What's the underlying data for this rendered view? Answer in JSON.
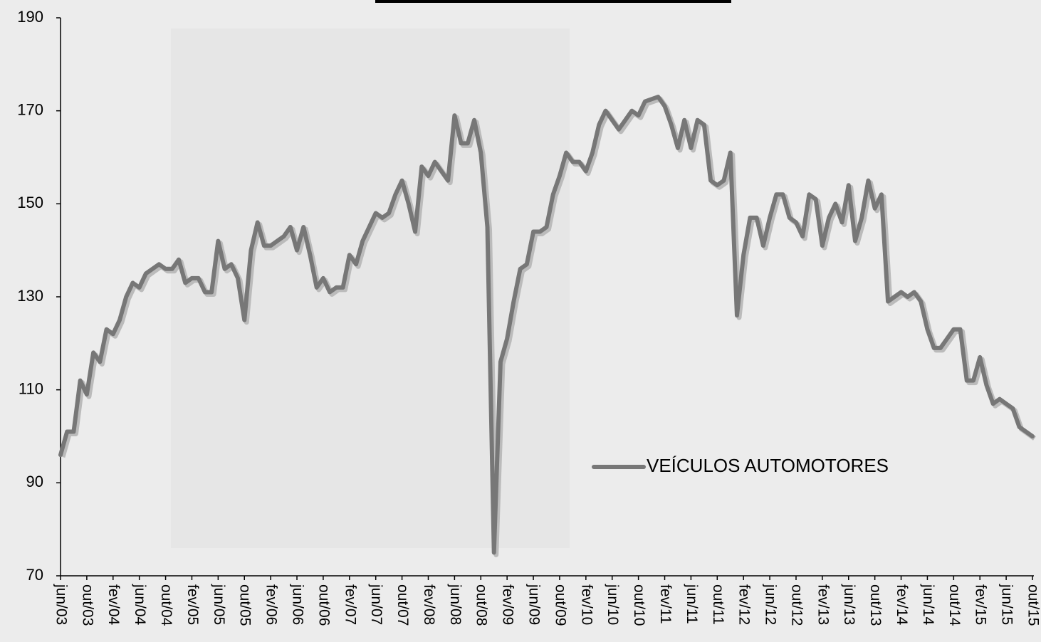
{
  "chart_data": {
    "type": "line",
    "categories": [
      "jun/03",
      null,
      null,
      null,
      "out/03",
      null,
      null,
      null,
      "fev/04",
      null,
      null,
      null,
      "jun/04",
      null,
      null,
      null,
      "out/04",
      null,
      null,
      null,
      "fev/05",
      null,
      null,
      null,
      "jun/05",
      null,
      null,
      null,
      "out/05",
      null,
      null,
      null,
      "fev/06",
      null,
      null,
      null,
      "jun/06",
      null,
      null,
      null,
      "out/06",
      null,
      null,
      null,
      "fev/07",
      null,
      null,
      null,
      "jun/07",
      null,
      null,
      null,
      "out/07",
      null,
      null,
      null,
      "fev/08",
      null,
      null,
      null,
      "jun/08",
      null,
      null,
      null,
      "out/08",
      null,
      null,
      null,
      "fev/09",
      null,
      null,
      null,
      "jun/09",
      null,
      null,
      null,
      "out/09",
      null,
      null,
      null,
      "fev/10",
      null,
      null,
      null,
      "jun/10",
      null,
      null,
      null,
      "out/10",
      null,
      null,
      null,
      "fev/11",
      null,
      null,
      null,
      "jun/11",
      null,
      null,
      null,
      "out/11",
      null,
      null,
      null,
      "fev/12",
      null,
      null,
      null,
      "jun/12",
      null,
      null,
      null,
      "out/12",
      null,
      null,
      null,
      "fev/13",
      null,
      null,
      null,
      "jun/13",
      null,
      null,
      null,
      "out/13",
      null,
      null,
      null,
      "fev/14",
      null,
      null,
      null,
      "jun/14",
      null,
      null,
      null,
      "out/14",
      null,
      null,
      null,
      "fev/15",
      null,
      null,
      null,
      "jun/15",
      null,
      null,
      null,
      "out/15"
    ],
    "series": [
      {
        "name": "VEÍCULOS AUTOMOTORES",
        "color": "#777777",
        "values": [
          96,
          101,
          101,
          112,
          109,
          118,
          116,
          123,
          122,
          125,
          130,
          133,
          132,
          135,
          136,
          137,
          136,
          136,
          138,
          133,
          134,
          134,
          131,
          131,
          142,
          136,
          137,
          134,
          125,
          140,
          146,
          141,
          141,
          142,
          143,
          145,
          140,
          145,
          139,
          132,
          134,
          131,
          132,
          132,
          139,
          137,
          142,
          145,
          148,
          147,
          148,
          152,
          155,
          150,
          144,
          158,
          156,
          159,
          157,
          155,
          169,
          163,
          163,
          168,
          161,
          145,
          75,
          116,
          121,
          129,
          136,
          137,
          144,
          144,
          145,
          152,
          156,
          161,
          159,
          159,
          157,
          161,
          167,
          170,
          168,
          166,
          168,
          170,
          169,
          172,
          172.5,
          173,
          171,
          167,
          162,
          168,
          162,
          168,
          167,
          155,
          154,
          155,
          161,
          126,
          139,
          147,
          147,
          141,
          147,
          152,
          152,
          147,
          146,
          143,
          152,
          151,
          141,
          147,
          150,
          146,
          154,
          142,
          147,
          155,
          149,
          152,
          129,
          130,
          131,
          130,
          131,
          129,
          123,
          119,
          119,
          121,
          123,
          123,
          112,
          112,
          117,
          111,
          107,
          108,
          107,
          106,
          102,
          101,
          100
        ]
      }
    ],
    "ylim": [
      70,
      190
    ],
    "yticks": [
      70,
      90,
      110,
      130,
      150,
      170,
      190
    ]
  }
}
